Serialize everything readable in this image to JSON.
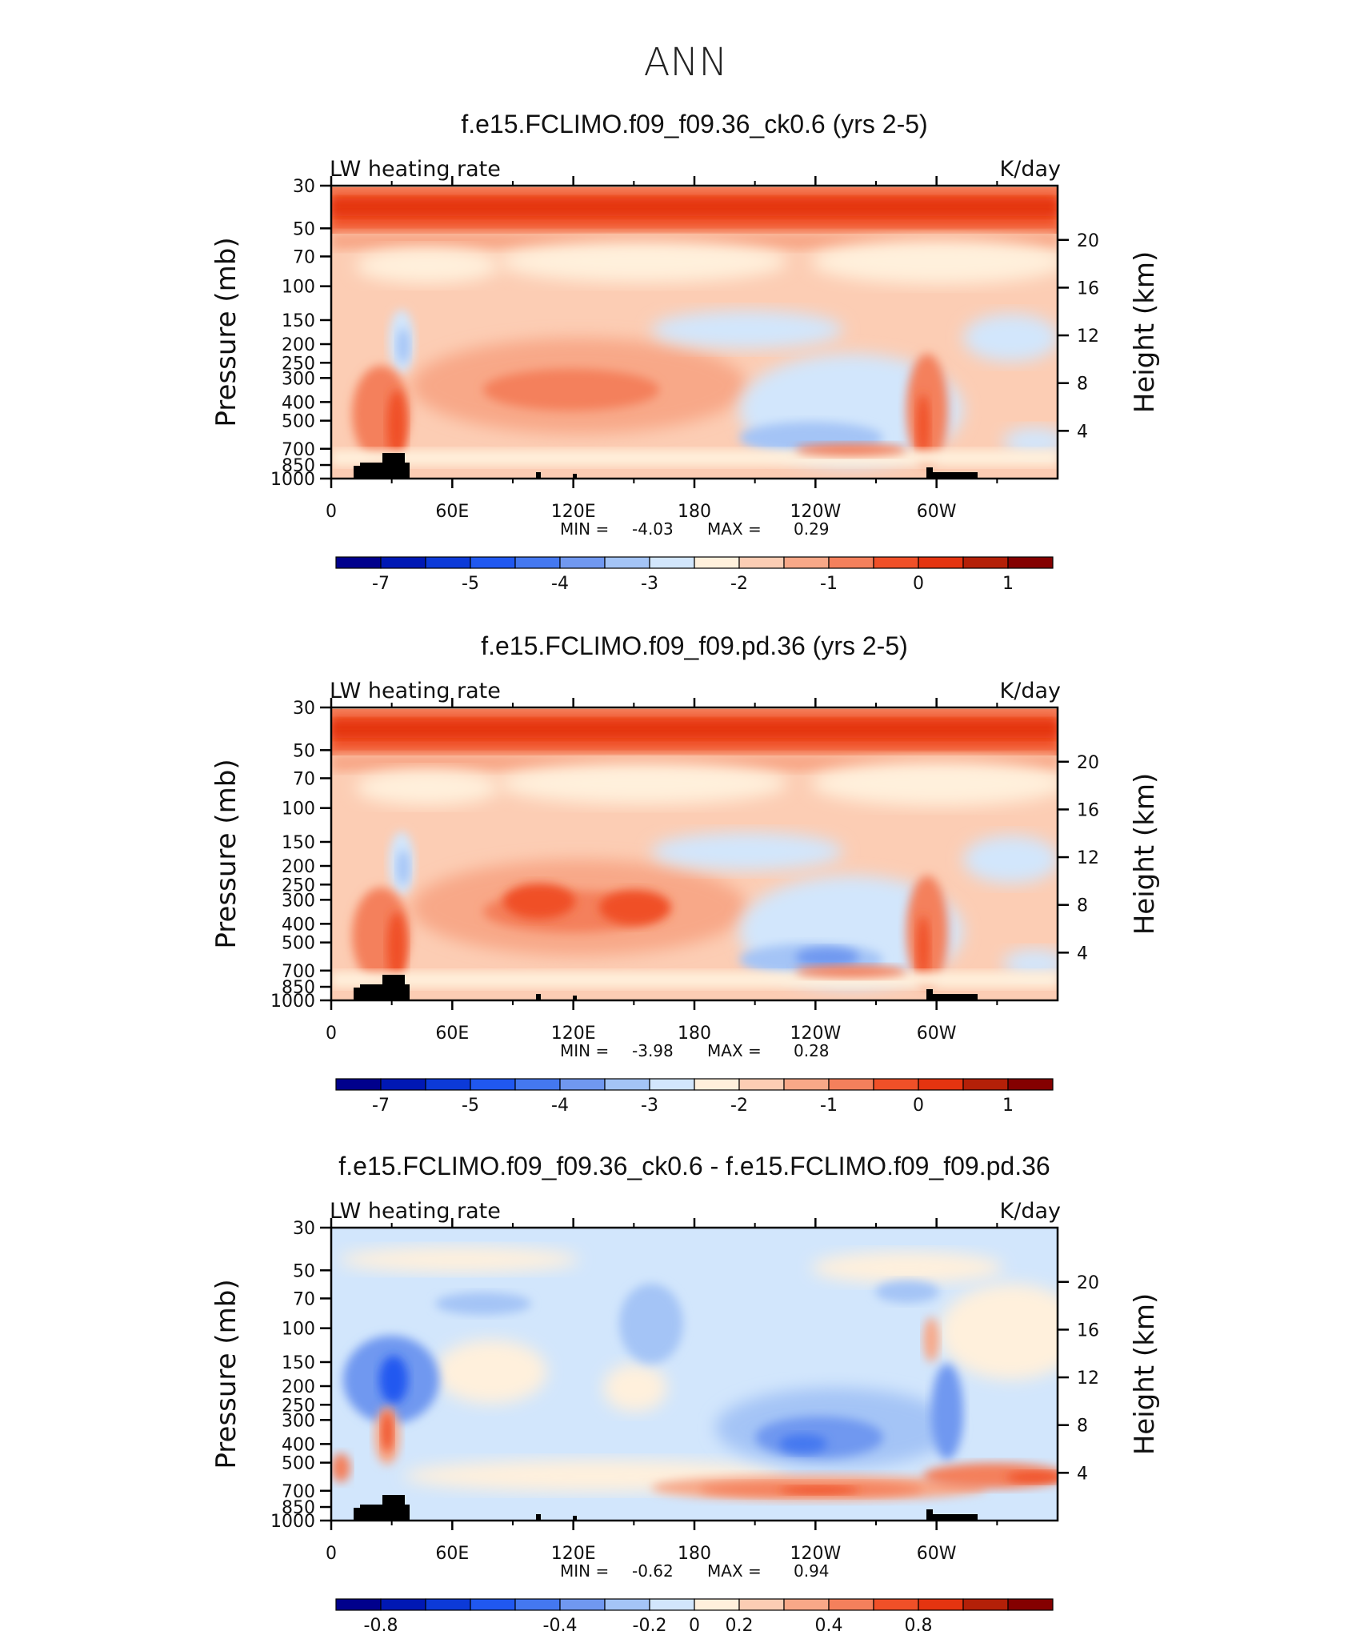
{
  "figure_title": "ANN",
  "colors": {
    "scale_fields": [
      "#00008c",
      "#0018b4",
      "#0c3ad8",
      "#2058f0",
      "#4478f0",
      "#7098f0",
      "#a4c4f6",
      "#d2e6fc",
      "#fff0dc",
      "#fccdb4",
      "#f8a888",
      "#f4805c",
      "#f05028",
      "#e43410",
      "#b42008",
      "#840000"
    ],
    "scale_diff": [
      "#00008c",
      "#0018b4",
      "#0c3ad8",
      "#2058f0",
      "#4478f0",
      "#7098f0",
      "#a4c4f6",
      "#d2e6fc",
      "#fff0dc",
      "#fccdb4",
      "#f8a888",
      "#f4805c",
      "#f05028",
      "#e43410",
      "#b42008",
      "#840000"
    ],
    "topography": "#000000"
  },
  "chart_data": [
    {
      "type": "heatmap",
      "title": "f.e15.FCLIMO.f09_f09.36_ck0.6 (yrs 2-5)",
      "left_label": "LW heating rate",
      "right_label": "K/day",
      "ylabel": "Pressure (mb)",
      "y2label": "Height (km)",
      "x_ticks": [
        "0",
        "60E",
        "120E",
        "180",
        "120W",
        "60W"
      ],
      "y_ticks": [
        "30",
        "50",
        "70",
        "100",
        "150",
        "200",
        "250",
        "300",
        "400",
        "500",
        "700",
        "850",
        "1000"
      ],
      "y2_ticks": [
        "20",
        "16",
        "12",
        "8",
        "4"
      ],
      "min_label": "MIN =",
      "min_value": "-4.03",
      "max_label": "MAX =",
      "max_value": "0.29",
      "colorbar_labels": [
        "-7",
        "-5",
        "-4",
        "-3",
        "-2",
        "-1",
        "0",
        "1"
      ]
    },
    {
      "type": "heatmap",
      "title": "f.e15.FCLIMO.f09_f09.pd.36 (yrs 2-5)",
      "left_label": "LW heating rate",
      "right_label": "K/day",
      "ylabel": "Pressure (mb)",
      "y2label": "Height (km)",
      "x_ticks": [
        "0",
        "60E",
        "120E",
        "180",
        "120W",
        "60W"
      ],
      "y_ticks": [
        "30",
        "50",
        "70",
        "100",
        "150",
        "200",
        "250",
        "300",
        "400",
        "500",
        "700",
        "850",
        "1000"
      ],
      "y2_ticks": [
        "20",
        "16",
        "12",
        "8",
        "4"
      ],
      "min_label": "MIN =",
      "min_value": "-3.98",
      "max_label": "MAX =",
      "max_value": "0.28",
      "colorbar_labels": [
        "-7",
        "-5",
        "-4",
        "-3",
        "-2",
        "-1",
        "0",
        "1"
      ]
    },
    {
      "type": "heatmap",
      "title": "f.e15.FCLIMO.f09_f09.36_ck0.6 - f.e15.FCLIMO.f09_f09.pd.36",
      "left_label": "LW heating rate",
      "right_label": "K/day",
      "ylabel": "Pressure (mb)",
      "y2label": "Height (km)",
      "x_ticks": [
        "0",
        "60E",
        "120E",
        "180",
        "120W",
        "60W"
      ],
      "y_ticks": [
        "30",
        "50",
        "70",
        "100",
        "150",
        "200",
        "250",
        "300",
        "400",
        "500",
        "700",
        "850",
        "1000"
      ],
      "y2_ticks": [
        "20",
        "16",
        "12",
        "8",
        "4"
      ],
      "min_label": "MIN =",
      "min_value": "-0.62",
      "max_label": "MAX =",
      "max_value": "0.94",
      "colorbar_labels": [
        "-0.8",
        "-0.4",
        "-0.2",
        "0",
        "0.2",
        "0.4",
        "0.8"
      ]
    }
  ]
}
